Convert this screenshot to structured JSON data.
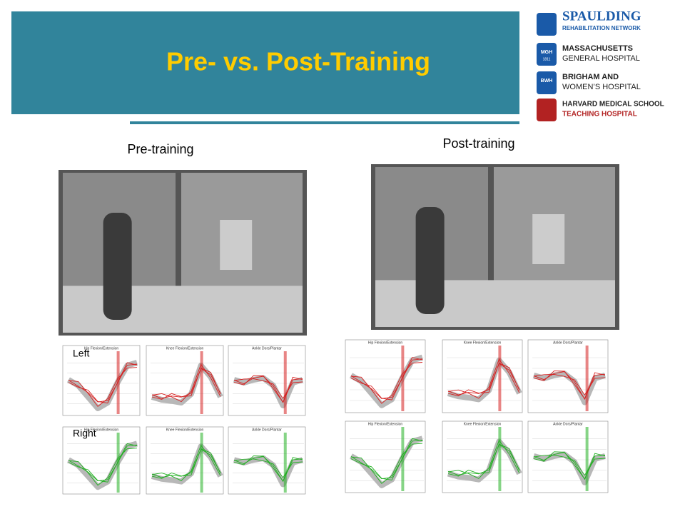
{
  "header": {
    "title": "Pre- vs. Post-Training"
  },
  "logos": [
    {
      "name": "SPAULDING",
      "sub": "REHABILITATION NETWORK"
    },
    {
      "icon": "MGH",
      "year": "1811",
      "name": "MASSACHUSETTS",
      "sub": "GENERAL HOSPITAL"
    },
    {
      "icon": "BWH",
      "name": "BRIGHAM AND",
      "sub": "WOMEN’S HOSPITAL"
    },
    {
      "name": "HARVARD MEDICAL SCHOOL",
      "sub": "TEACHING HOSPITAL"
    }
  ],
  "panels": [
    {
      "label": "Pre-training",
      "rows": [
        {
          "label": "Left",
          "plots": [
            "Hip Flexion/Extension",
            "Knee Flexion/Extension",
            "Ankle Dors/Plantar"
          ]
        },
        {
          "label": "Right",
          "plots": [
            "Hip Flexion/Extension",
            "Knee Flexion/Extension",
            "Ankle Dors/Plantar"
          ]
        }
      ]
    },
    {
      "label": "Post-training",
      "rows": [
        {
          "plots": [
            "Hip Flexion/Extension",
            "Knee Flexion/Extension",
            "Ankle Dors/Plantar"
          ]
        },
        {
          "plots": [
            "Hip Flexion/Extension",
            "Knee Flexion/Extension",
            "Ankle Dors/Plantar"
          ]
        }
      ]
    }
  ]
}
